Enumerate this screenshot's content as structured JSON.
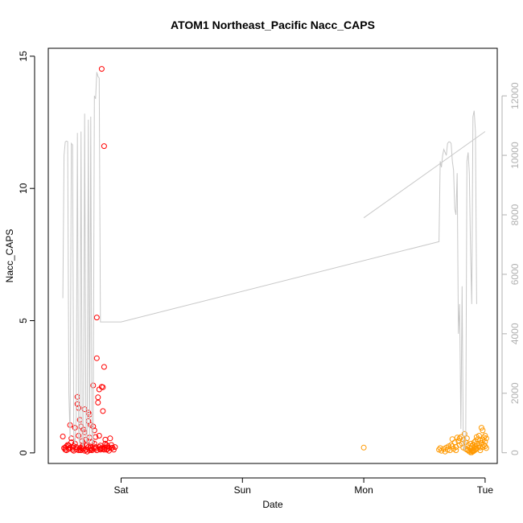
{
  "chart_data": {
    "type": "scatter",
    "title": "ATOM1 Northeast_Pacific Nacc_CAPS",
    "xlabel": "Date",
    "ylabel": "Nacc_CAPS",
    "x_ticks": [
      {
        "label": "Sat",
        "day": 1
      },
      {
        "label": "Sun",
        "day": 2
      },
      {
        "label": "Mon",
        "day": 3
      },
      {
        "label": "Tue",
        "day": 4
      }
    ],
    "x_range_days": [
      0.4,
      4.1
    ],
    "ylim": [
      -0.4,
      15.3
    ],
    "y_ticks": [
      0,
      5,
      10,
      15
    ],
    "right_axis": {
      "ylim": [
        -360,
        13600
      ],
      "ticks": [
        0,
        2000,
        4000,
        6000,
        8000,
        10000,
        12000
      ],
      "color": "#b0b0b0"
    },
    "grid": false,
    "series": [
      {
        "color": "#ff0000",
        "marker": "circle-open",
        "points": [
          [
            0.52,
            0.62
          ],
          [
            0.53,
            0.18
          ],
          [
            0.54,
            0.12
          ],
          [
            0.55,
            0.25
          ],
          [
            0.56,
            0.3
          ],
          [
            0.57,
            0.15
          ],
          [
            0.58,
            1.05
          ],
          [
            0.59,
            0.4
          ],
          [
            0.59,
            0.55
          ],
          [
            0.6,
            0.2
          ],
          [
            0.61,
            0.08
          ],
          [
            0.62,
            0.95
          ],
          [
            0.62,
            0.35
          ],
          [
            0.63,
            0.22
          ],
          [
            0.64,
            1.85
          ],
          [
            0.64,
            2.12
          ],
          [
            0.65,
            1.7
          ],
          [
            0.65,
            0.65
          ],
          [
            0.66,
            1.25
          ],
          [
            0.66,
            0.18
          ],
          [
            0.67,
            1.0
          ],
          [
            0.67,
            0.1
          ],
          [
            0.68,
            0.45
          ],
          [
            0.68,
            0.25
          ],
          [
            0.69,
            0.88
          ],
          [
            0.69,
            0.15
          ],
          [
            0.7,
            1.65
          ],
          [
            0.7,
            0.78
          ],
          [
            0.71,
            0.5
          ],
          [
            0.71,
            0.12
          ],
          [
            0.72,
            0.3
          ],
          [
            0.72,
            0.05
          ],
          [
            0.73,
            1.52
          ],
          [
            0.73,
            1.2
          ],
          [
            0.74,
            1.45
          ],
          [
            0.74,
            0.58
          ],
          [
            0.75,
            1.05
          ],
          [
            0.75,
            0.2
          ],
          [
            0.76,
            0.1
          ],
          [
            0.76,
            0.4
          ],
          [
            0.77,
            2.55
          ],
          [
            0.77,
            1.0
          ],
          [
            0.78,
            0.85
          ],
          [
            0.78,
            0.35
          ],
          [
            0.79,
            0.6
          ],
          [
            0.79,
            0.15
          ],
          [
            0.8,
            5.12
          ],
          [
            0.8,
            3.58
          ],
          [
            0.81,
            2.1
          ],
          [
            0.81,
            1.9
          ],
          [
            0.82,
            2.4
          ],
          [
            0.82,
            0.65
          ],
          [
            0.83,
            0.12
          ],
          [
            0.83,
            0.28
          ],
          [
            0.84,
            14.52
          ],
          [
            0.84,
            2.5
          ],
          [
            0.85,
            2.48
          ],
          [
            0.85,
            1.58
          ],
          [
            0.86,
            11.6
          ],
          [
            0.86,
            3.25
          ],
          [
            0.87,
            0.5
          ],
          [
            0.87,
            0.35
          ],
          [
            0.88,
            0.3
          ],
          [
            0.89,
            0.15
          ],
          [
            0.9,
            0.08
          ],
          [
            0.91,
            0.55
          ],
          [
            0.92,
            0.18
          ],
          [
            0.93,
            0.2
          ],
          [
            0.94,
            0.12
          ],
          [
            0.95,
            0.22
          ],
          [
            0.55,
            0.1
          ],
          [
            0.6,
            0.12
          ],
          [
            0.65,
            0.1
          ],
          [
            0.7,
            0.08
          ],
          [
            0.75,
            0.12
          ],
          [
            0.8,
            0.1
          ],
          [
            0.85,
            0.15
          ],
          [
            0.9,
            0.2
          ],
          [
            0.57,
            0.28
          ],
          [
            0.63,
            0.14
          ],
          [
            0.68,
            0.16
          ],
          [
            0.73,
            0.22
          ],
          [
            0.78,
            0.18
          ],
          [
            0.82,
            0.22
          ],
          [
            0.88,
            0.12
          ],
          [
            0.92,
            0.3
          ],
          [
            0.61,
            0.25
          ],
          [
            0.67,
            0.2
          ],
          [
            0.71,
            0.28
          ],
          [
            0.76,
            0.15
          ],
          [
            0.58,
            0.2
          ],
          [
            0.66,
            0.12
          ],
          [
            0.74,
            0.1
          ],
          [
            0.84,
            0.18
          ],
          [
            0.86,
            0.12
          ],
          [
            0.89,
            0.25
          ],
          [
            0.54,
            0.2
          ],
          [
            0.79,
            0.22
          ],
          [
            0.83,
            0.16
          ],
          [
            0.87,
            0.2
          ]
        ]
      },
      {
        "color": "#ff9900",
        "marker": "circle-open",
        "points": [
          [
            3.0,
            0.2
          ],
          [
            3.62,
            0.12
          ],
          [
            3.64,
            0.08
          ],
          [
            3.66,
            0.15
          ],
          [
            3.67,
            0.05
          ],
          [
            3.68,
            0.2
          ],
          [
            3.7,
            0.25
          ],
          [
            3.71,
            0.1
          ],
          [
            3.72,
            0.3
          ],
          [
            3.73,
            0.52
          ],
          [
            3.74,
            0.15
          ],
          [
            3.75,
            0.4
          ],
          [
            3.76,
            0.22
          ],
          [
            3.77,
            0.58
          ],
          [
            3.78,
            0.45
          ],
          [
            3.79,
            0.3
          ],
          [
            3.8,
            0.6
          ],
          [
            3.81,
            0.35
          ],
          [
            3.82,
            0.5
          ],
          [
            3.83,
            0.72
          ],
          [
            3.84,
            0.4
          ],
          [
            3.85,
            0.55
          ],
          [
            3.86,
            0.3
          ],
          [
            3.86,
            0.1
          ],
          [
            3.87,
            0.05
          ],
          [
            3.87,
            0.2
          ],
          [
            3.88,
            0.02
          ],
          [
            3.88,
            0.15
          ],
          [
            3.89,
            0.08
          ],
          [
            3.89,
            0.25
          ],
          [
            3.9,
            0.1
          ],
          [
            3.9,
            0.3
          ],
          [
            3.91,
            0.18
          ],
          [
            3.91,
            0.4
          ],
          [
            3.92,
            0.25
          ],
          [
            3.92,
            0.45
          ],
          [
            3.93,
            0.6
          ],
          [
            3.93,
            0.35
          ],
          [
            3.94,
            0.52
          ],
          [
            3.95,
            0.28
          ],
          [
            3.95,
            0.65
          ],
          [
            3.96,
            0.48
          ],
          [
            3.96,
            0.2
          ],
          [
            3.97,
            0.95
          ],
          [
            3.97,
            0.38
          ],
          [
            3.98,
            0.85
          ],
          [
            3.98,
            0.22
          ],
          [
            3.99,
            0.58
          ],
          [
            3.99,
            0.3
          ],
          [
            4.0,
            0.42
          ],
          [
            4.0,
            0.25
          ],
          [
            4.01,
            0.55
          ],
          [
            4.01,
            0.18
          ],
          [
            3.63,
            0.18
          ],
          [
            3.69,
            0.12
          ],
          [
            3.73,
            0.25
          ],
          [
            3.76,
            0.1
          ],
          [
            3.79,
            0.55
          ],
          [
            3.82,
            0.2
          ],
          [
            3.84,
            0.15
          ],
          [
            3.85,
            0.12
          ],
          [
            3.88,
            0.35
          ],
          [
            3.9,
            0.05
          ],
          [
            3.92,
            0.12
          ],
          [
            3.94,
            0.2
          ],
          [
            3.96,
            0.1
          ],
          [
            3.98,
            0.48
          ],
          [
            4.0,
            0.65
          ],
          [
            3.89,
            0.02
          ],
          [
            3.91,
            0.08
          ],
          [
            3.93,
            0.15
          ]
        ]
      },
      {
        "color": "#c8c8c8",
        "type": "line",
        "axis": "right",
        "points": [
          [
            0.52,
            5200
          ],
          [
            0.53,
            10000
          ],
          [
            0.54,
            10450
          ],
          [
            0.55,
            10480
          ],
          [
            0.56,
            10460
          ],
          [
            0.57,
            2000
          ],
          [
            0.58,
            500
          ],
          [
            0.59,
            10400
          ],
          [
            0.6,
            10350
          ],
          [
            0.61,
            500
          ],
          [
            0.62,
            300
          ],
          [
            0.63,
            1200
          ],
          [
            0.64,
            10750
          ],
          [
            0.65,
            500
          ],
          [
            0.66,
            300
          ],
          [
            0.67,
            10800
          ],
          [
            0.68,
            300
          ],
          [
            0.69,
            200
          ],
          [
            0.7,
            11400
          ],
          [
            0.71,
            500
          ],
          [
            0.72,
            300
          ],
          [
            0.73,
            11200
          ],
          [
            0.74,
            300
          ],
          [
            0.75,
            11300
          ],
          [
            0.76,
            400
          ],
          [
            0.77,
            300
          ],
          [
            0.78,
            12000
          ],
          [
            0.79,
            11900
          ],
          [
            0.8,
            12800
          ],
          [
            0.81,
            12650
          ],
          [
            0.82,
            12600
          ],
          [
            0.83,
            4400
          ],
          [
            1.0,
            4400
          ],
          [
            3.62,
            7100
          ],
          [
            3.63,
            9800
          ],
          [
            3.64,
            9600
          ],
          [
            3.65,
            10000
          ],
          [
            3.66,
            10200
          ],
          [
            3.67,
            10100
          ],
          [
            3.68,
            10000
          ],
          [
            3.69,
            10400
          ],
          [
            3.7,
            10450
          ],
          [
            3.71,
            10450
          ],
          [
            3.72,
            10400
          ],
          [
            3.73,
            9800
          ],
          [
            3.74,
            9500
          ],
          [
            3.75,
            8200
          ],
          [
            3.76,
            8000
          ],
          [
            3.77,
            9400
          ],
          [
            3.78,
            4000
          ],
          [
            3.79,
            5000
          ],
          [
            3.8,
            800
          ],
          [
            3.81,
            5600
          ],
          [
            3.82,
            200
          ],
          [
            3.83,
            100
          ],
          [
            3.84,
            300
          ],
          [
            3.85,
            9800
          ],
          [
            3.86,
            10100
          ],
          [
            3.87,
            9400
          ],
          [
            3.88,
            6800
          ],
          [
            3.89,
            5000
          ],
          [
            3.9,
            11300
          ],
          [
            3.91,
            11500
          ],
          [
            3.92,
            10800
          ],
          [
            3.93,
            5000
          ]
        ]
      },
      {
        "color": "#c8c8c8",
        "type": "line",
        "axis": "right",
        "points": [
          [
            3.0,
            7900
          ],
          [
            4.0,
            10800
          ]
        ]
      }
    ]
  }
}
